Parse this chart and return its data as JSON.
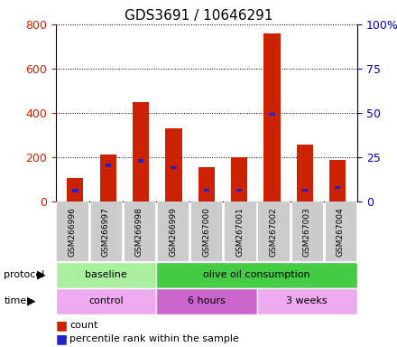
{
  "title": "GDS3691 / 10646291",
  "samples": [
    "GSM266996",
    "GSM266997",
    "GSM266998",
    "GSM266999",
    "GSM267000",
    "GSM267001",
    "GSM267002",
    "GSM267003",
    "GSM267004"
  ],
  "count_values": [
    105,
    210,
    450,
    330,
    155,
    200,
    760,
    255,
    185
  ],
  "percentile_bottom": [
    40,
    155,
    175,
    145,
    42,
    42,
    385,
    42,
    55
  ],
  "percentile_top": [
    55,
    170,
    190,
    160,
    55,
    55,
    400,
    55,
    70
  ],
  "left_yticks": [
    0,
    200,
    400,
    600,
    800
  ],
  "right_yticks": [
    0,
    25,
    50,
    75,
    100
  ],
  "right_ylabels": [
    "0",
    "25",
    "50",
    "75",
    "100%"
  ],
  "protocol_groups": [
    {
      "label": "baseline",
      "start": 0,
      "end": 3,
      "color": "#aaeea0"
    },
    {
      "label": "olive oil consumption",
      "start": 3,
      "end": 9,
      "color": "#44cc44"
    }
  ],
  "time_groups": [
    {
      "label": "control",
      "start": 0,
      "end": 3,
      "color": "#eeaaee"
    },
    {
      "label": "6 hours",
      "start": 3,
      "end": 6,
      "color": "#cc66cc"
    },
    {
      "label": "3 weeks",
      "start": 6,
      "end": 9,
      "color": "#eeaaee"
    }
  ],
  "bar_color": "#cc2200",
  "pct_color": "#2222cc",
  "grid_color": "#000000",
  "left_label_color": "#cc2200",
  "right_label_color": "#0000cc",
  "tick_bg": "#cccccc",
  "legend_count_label": "count",
  "legend_pct_label": "percentile rank within the sample",
  "ylim_left": [
    0,
    800
  ],
  "ylim_right": [
    0,
    100
  ]
}
